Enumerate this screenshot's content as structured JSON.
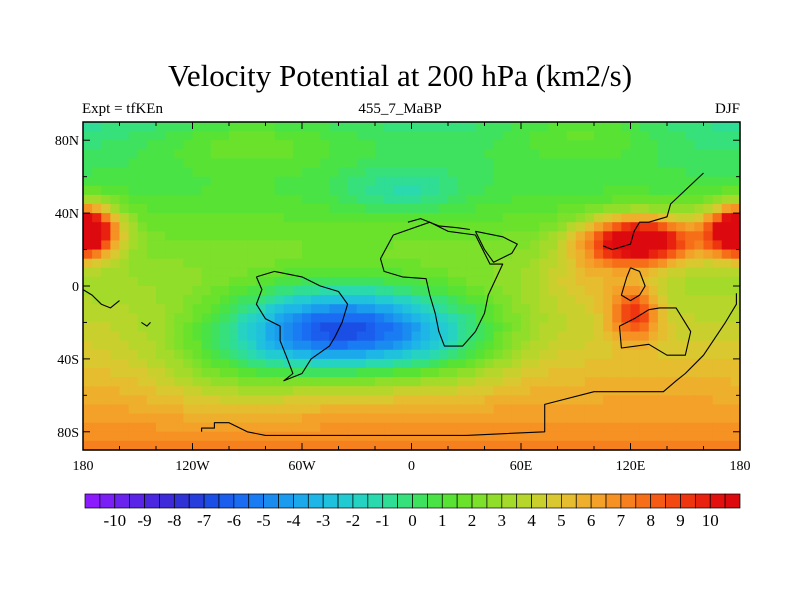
{
  "chart_data": {
    "type": "heatmap",
    "title": "Velocity Potential at 200 hPa (km2/s)",
    "subtitle_left": "Expt = tfKEn",
    "subtitle_center": "455_7_MaBP",
    "subtitle_right": "DJF",
    "xlim": [
      -180,
      180
    ],
    "ylim": [
      -90,
      90
    ],
    "x_ticks": [
      {
        "value": -180,
        "label": "180"
      },
      {
        "value": -120,
        "label": "120W"
      },
      {
        "value": -60,
        "label": "60W"
      },
      {
        "value": 0,
        "label": "0"
      },
      {
        "value": 60,
        "label": "60E"
      },
      {
        "value": 120,
        "label": "120E"
      },
      {
        "value": 180,
        "label": "180"
      }
    ],
    "y_ticks": [
      {
        "value": 80,
        "label": "80N"
      },
      {
        "value": 40,
        "label": "40N"
      },
      {
        "value": 0,
        "label": "0"
      },
      {
        "value": -40,
        "label": "40S"
      },
      {
        "value": -80,
        "label": "80S"
      }
    ],
    "colorbar": {
      "min": -11,
      "max": 11,
      "step": 0.5,
      "tick_values": [
        -10,
        -9,
        -8,
        -7,
        -6,
        -5,
        -4,
        -3,
        -2,
        -1,
        0,
        1,
        2,
        3,
        4,
        5,
        6,
        7,
        8,
        9,
        10
      ],
      "tick_labels": [
        "-10",
        "-9",
        "-8",
        "-7",
        "-6",
        "-5",
        "-4",
        "-3",
        "-2",
        "-1",
        "0",
        "1",
        "2",
        "3",
        "4",
        "5",
        "6",
        "7",
        "8",
        "9",
        "10"
      ],
      "colors": [
        "#8c1aff",
        "#7a1ff5",
        "#6a22ee",
        "#5a24e8",
        "#4b26e0",
        "#3e2ad8",
        "#3132d6",
        "#263fdc",
        "#1b4ee4",
        "#1b5ded",
        "#1a6df2",
        "#197cf2",
        "#1a8cf0",
        "#1a9bee",
        "#1ba9ec",
        "#1db6e6",
        "#1fc1dd",
        "#22cbd1",
        "#26d3c2",
        "#2ad9ae",
        "#2fdd95",
        "#36e07a",
        "#3fe25e",
        "#4ae346",
        "#58e334",
        "#6ae22c",
        "#7de02a",
        "#90dd2a",
        "#a4da2a",
        "#b7d62c",
        "#c9d02e",
        "#d9c82f",
        "#e5bd2f",
        "#eeb02c",
        "#f3a128",
        "#f69123",
        "#f7801e",
        "#f76e19",
        "#f55b15",
        "#f24812",
        "#ee3510",
        "#e8220f",
        "#e2110f",
        "#dc0a0f"
      ]
    },
    "field_centers": [
      {
        "lon": -40,
        "lat": -25,
        "value": -10.6,
        "lon_radius": 60,
        "lat_radius": 24
      },
      {
        "lon": 20,
        "lat": -30,
        "value": -2.5,
        "lon_radius": 42,
        "lat_radius": 25
      },
      {
        "lon": -100,
        "lat": -45,
        "value": -2.0,
        "lon_radius": 45,
        "lat_radius": 25
      },
      {
        "lon": 125,
        "lat": 25,
        "value": 10.8,
        "lon_radius": 30,
        "lat_radius": 13
      },
      {
        "lon": 98,
        "lat": 5,
        "value": 2.0,
        "lon_radius": 28,
        "lat_radius": 18
      },
      {
        "lon": 122,
        "lat": -15,
        "value": 5.5,
        "lon_radius": 13,
        "lat_radius": 14
      },
      {
        "lon": -180,
        "lat": 30,
        "value": 8.0,
        "lon_radius": 20,
        "lat_radius": 14
      },
      {
        "lon": 180,
        "lat": 30,
        "value": 6.0,
        "lon_radius": 14,
        "lat_radius": 12
      },
      {
        "lon": -90,
        "lat": 80,
        "value": 2.0,
        "lon_radius": 55,
        "lat_radius": 18
      },
      {
        "lon": -5,
        "lat": 52,
        "value": -2.0,
        "lon_radius": 35,
        "lat_radius": 12
      },
      {
        "lon": 0,
        "lat": 85,
        "value": 0.5,
        "lon_radius": 75,
        "lat_radius": 22
      },
      {
        "lon": 95,
        "lat": 85,
        "value": 2.0,
        "lon_radius": 45,
        "lat_radius": 18
      }
    ],
    "field_background": 3.2,
    "field_lat_factor": 0.045,
    "coastlines": [
      {
        "name": "antarctica",
        "points": [
          [
            -115,
            -80
          ],
          [
            -115,
            -78
          ],
          [
            -108,
            -78
          ],
          [
            -108,
            -75
          ],
          [
            -100,
            -75
          ],
          [
            -90,
            -80
          ],
          [
            -80,
            -82
          ],
          [
            -40,
            -82
          ],
          [
            0,
            -82
          ],
          [
            30,
            -82
          ],
          [
            73,
            -80
          ],
          [
            73,
            -65
          ],
          [
            100,
            -58
          ],
          [
            138,
            -58
          ],
          [
            145,
            -52
          ],
          [
            150,
            -48
          ],
          [
            160,
            -38
          ],
          [
            172,
            -20
          ],
          [
            178,
            -10
          ],
          [
            178,
            -4
          ]
        ]
      },
      {
        "name": "south-america",
        "points": [
          [
            -85,
            5
          ],
          [
            -82,
            -2
          ],
          [
            -85,
            -10
          ],
          [
            -80,
            -18
          ],
          [
            -72,
            -22
          ],
          [
            -72,
            -30
          ],
          [
            -68,
            -40
          ],
          [
            -65,
            -48
          ],
          [
            -70,
            -52
          ],
          [
            -60,
            -48
          ],
          [
            -55,
            -40
          ],
          [
            -45,
            -33
          ],
          [
            -42,
            -28
          ],
          [
            -38,
            -20
          ],
          [
            -35,
            -10
          ],
          [
            -40,
            -3
          ],
          [
            -50,
            0
          ],
          [
            -60,
            5
          ],
          [
            -75,
            8
          ],
          [
            -85,
            5
          ]
        ]
      },
      {
        "name": "africa",
        "points": [
          [
            -10,
            28
          ],
          [
            -17,
            15
          ],
          [
            -15,
            8
          ],
          [
            -5,
            5
          ],
          [
            8,
            4
          ],
          [
            10,
            -5
          ],
          [
            13,
            -15
          ],
          [
            15,
            -25
          ],
          [
            18,
            -33
          ],
          [
            28,
            -33
          ],
          [
            35,
            -25
          ],
          [
            40,
            -15
          ],
          [
            42,
            -5
          ],
          [
            50,
            12
          ],
          [
            43,
            12
          ],
          [
            35,
            28
          ],
          [
            20,
            30
          ],
          [
            10,
            35
          ],
          [
            -10,
            28
          ]
        ]
      },
      {
        "name": "north-africa-coast",
        "points": [
          [
            -2,
            35
          ],
          [
            5,
            37
          ],
          [
            15,
            33
          ],
          [
            25,
            32
          ],
          [
            32,
            31
          ]
        ]
      },
      {
        "name": "australia",
        "points": [
          [
            114,
            -22
          ],
          [
            115,
            -34
          ],
          [
            130,
            -32
          ],
          [
            140,
            -38
          ],
          [
            150,
            -38
          ],
          [
            153,
            -25
          ],
          [
            145,
            -12
          ],
          [
            136,
            -12
          ],
          [
            130,
            -13
          ],
          [
            122,
            -18
          ],
          [
            114,
            -22
          ]
        ]
      },
      {
        "name": "asia-coast",
        "points": [
          [
            105,
            22
          ],
          [
            110,
            20
          ],
          [
            120,
            23
          ],
          [
            122,
            30
          ],
          [
            125,
            35
          ],
          [
            130,
            35
          ],
          [
            140,
            38
          ],
          [
            142,
            45
          ],
          [
            160,
            62
          ]
        ]
      },
      {
        "name": "maritime-continent",
        "points": [
          [
            120,
            10
          ],
          [
            118,
            5
          ],
          [
            115,
            -5
          ],
          [
            120,
            -8
          ],
          [
            125,
            -5
          ],
          [
            128,
            0
          ],
          [
            125,
            8
          ],
          [
            120,
            10
          ]
        ]
      },
      {
        "name": "central-america",
        "points": [
          [
            -180,
            -2
          ],
          [
            -175,
            -5
          ],
          [
            -170,
            -10
          ],
          [
            -165,
            -12
          ],
          [
            -160,
            -8
          ]
        ]
      },
      {
        "name": "pacific-island",
        "points": [
          [
            -148,
            -20
          ],
          [
            -145,
            -22
          ],
          [
            -143,
            -20
          ]
        ]
      },
      {
        "name": "arabia",
        "points": [
          [
            35,
            30
          ],
          [
            40,
            20
          ],
          [
            45,
            13
          ],
          [
            55,
            18
          ],
          [
            58,
            23
          ],
          [
            50,
            27
          ],
          [
            35,
            30
          ]
        ]
      }
    ]
  }
}
